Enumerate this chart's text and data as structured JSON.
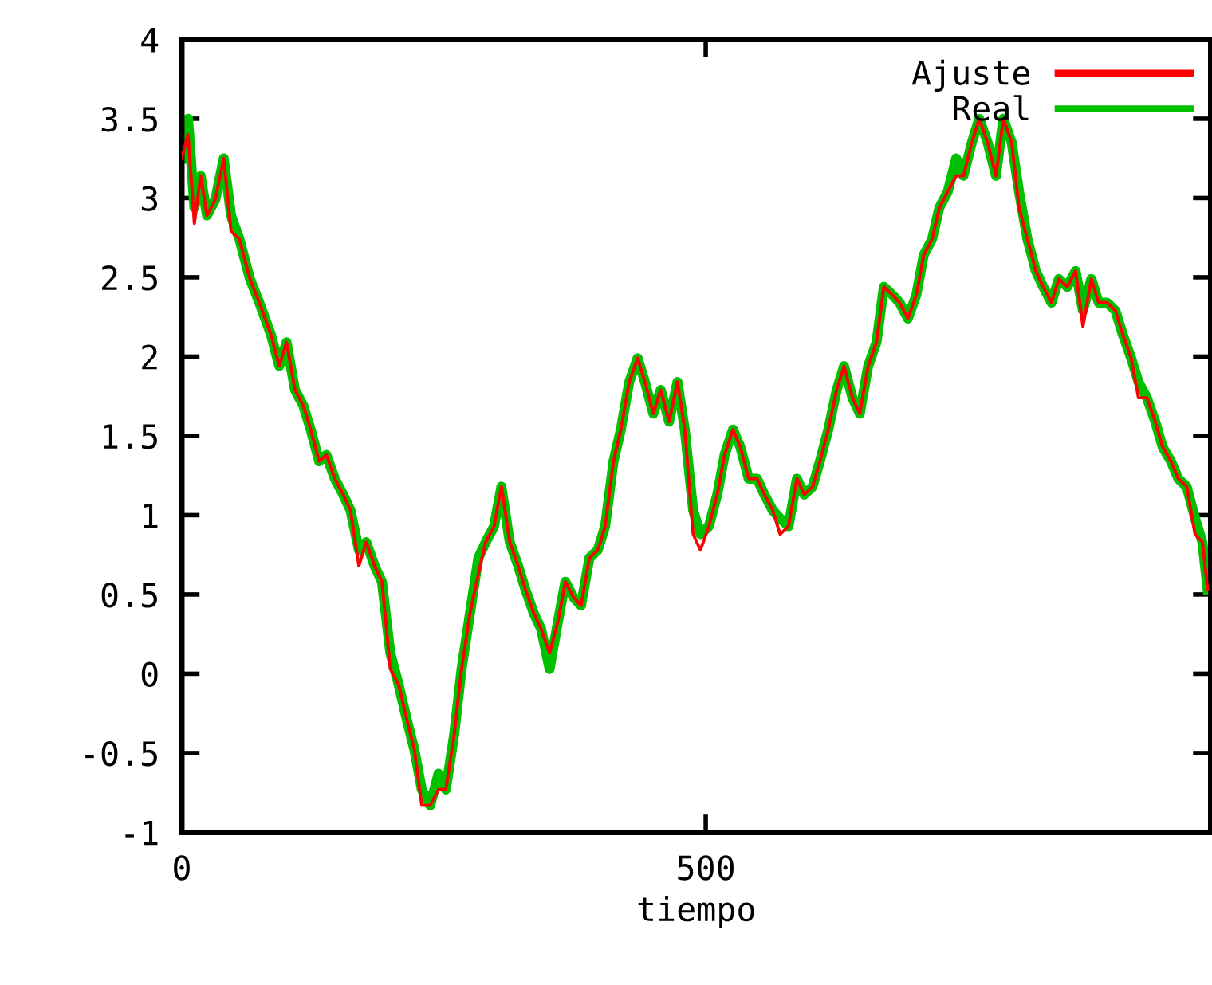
{
  "chart_data": {
    "type": "line",
    "xlabel": "tiempo",
    "xlim": [
      0,
      982
    ],
    "xticks": [
      0,
      500
    ],
    "ylim": [
      -1,
      4
    ],
    "yticks": [
      -1,
      -0.5,
      0,
      0.5,
      1,
      1.5,
      2,
      2.5,
      3,
      3.5,
      4
    ],
    "grid": false,
    "legend": "top right",
    "marker": "none",
    "line_style": "solid",
    "x": [
      0,
      6,
      12,
      18,
      24,
      32,
      40,
      47,
      55,
      65,
      74,
      85,
      93,
      100,
      108,
      116,
      123,
      131,
      138,
      146,
      154,
      161,
      169,
      176,
      184,
      191,
      199,
      207,
      214,
      222,
      229,
      237,
      245,
      252,
      260,
      267,
      275,
      283,
      290,
      298,
      305,
      313,
      321,
      328,
      336,
      343,
      351,
      359,
      366,
      374,
      381,
      389,
      397,
      404,
      412,
      419,
      427,
      435,
      442,
      450,
      457,
      465,
      473,
      480,
      488,
      495,
      503,
      511,
      518,
      526,
      533,
      541,
      549,
      556,
      564,
      571,
      579,
      587,
      594,
      602,
      609,
      617,
      625,
      632,
      640,
      647,
      655,
      663,
      670,
      678,
      685,
      693,
      701,
      708,
      716,
      723,
      731,
      739,
      746,
      754,
      761,
      769,
      777,
      784,
      792,
      799,
      807,
      815,
      822,
      830,
      837,
      845,
      853,
      860,
      868,
      875,
      883,
      891,
      898,
      906,
      913,
      921,
      929,
      936,
      944,
      951,
      959,
      967,
      974,
      979
    ],
    "series": [
      {
        "name": "Ajuste",
        "color": "#ff0000",
        "values": [
          3.25,
          3.4,
          2.84,
          3.14,
          2.89,
          2.99,
          3.25,
          2.79,
          2.74,
          2.49,
          2.34,
          2.14,
          1.94,
          2.09,
          1.79,
          1.69,
          1.54,
          1.34,
          1.38,
          1.23,
          1.13,
          1.03,
          0.68,
          0.83,
          0.68,
          0.58,
          0.03,
          -0.07,
          -0.27,
          -0.48,
          -0.83,
          -0.83,
          -0.73,
          -0.73,
          -0.38,
          0.03,
          0.38,
          0.63,
          0.83,
          0.93,
          1.18,
          0.83,
          0.68,
          0.53,
          0.38,
          0.28,
          0.13,
          0.33,
          0.58,
          0.48,
          0.43,
          0.73,
          0.78,
          0.93,
          1.34,
          1.54,
          1.84,
          1.99,
          1.84,
          1.64,
          1.79,
          1.59,
          1.84,
          1.54,
          0.88,
          0.78,
          0.93,
          1.13,
          1.38,
          1.54,
          1.43,
          1.23,
          1.23,
          1.13,
          1.03,
          0.88,
          0.93,
          1.23,
          1.13,
          1.18,
          1.34,
          1.54,
          1.79,
          1.94,
          1.74,
          1.64,
          1.94,
          2.09,
          2.44,
          2.39,
          2.34,
          2.24,
          2.39,
          2.64,
          2.74,
          2.94,
          3.04,
          3.14,
          3.14,
          3.35,
          3.5,
          3.35,
          3.14,
          3.5,
          3.35,
          2.94,
          2.74,
          2.54,
          2.44,
          2.34,
          2.49,
          2.44,
          2.54,
          2.19,
          2.49,
          2.34,
          2.34,
          2.29,
          2.14,
          1.99,
          1.74,
          1.74,
          1.59,
          1.43,
          1.34,
          1.23,
          1.18,
          0.88,
          0.83,
          0.53
        ]
      },
      {
        "name": "Real",
        "color": "#00c000",
        "values": [
          3.25,
          3.5,
          2.94,
          3.14,
          2.89,
          2.99,
          3.25,
          2.89,
          2.74,
          2.49,
          2.34,
          2.14,
          1.94,
          2.09,
          1.79,
          1.69,
          1.54,
          1.34,
          1.38,
          1.23,
          1.13,
          1.03,
          0.78,
          0.83,
          0.68,
          0.58,
          0.13,
          -0.07,
          -0.27,
          -0.48,
          -0.73,
          -0.83,
          -0.63,
          -0.73,
          -0.38,
          0.03,
          0.38,
          0.73,
          0.83,
          0.93,
          1.18,
          0.83,
          0.68,
          0.53,
          0.38,
          0.28,
          0.03,
          0.33,
          0.58,
          0.48,
          0.43,
          0.73,
          0.78,
          0.93,
          1.34,
          1.54,
          1.84,
          1.99,
          1.84,
          1.64,
          1.79,
          1.59,
          1.84,
          1.54,
          1.03,
          0.88,
          0.93,
          1.13,
          1.38,
          1.54,
          1.43,
          1.23,
          1.23,
          1.13,
          1.03,
          0.98,
          0.93,
          1.23,
          1.13,
          1.18,
          1.34,
          1.54,
          1.79,
          1.94,
          1.74,
          1.64,
          1.94,
          2.09,
          2.44,
          2.39,
          2.34,
          2.24,
          2.39,
          2.64,
          2.74,
          2.94,
          3.04,
          3.25,
          3.14,
          3.35,
          3.5,
          3.35,
          3.14,
          3.5,
          3.35,
          3.04,
          2.74,
          2.54,
          2.44,
          2.34,
          2.49,
          2.44,
          2.54,
          2.29,
          2.49,
          2.34,
          2.34,
          2.29,
          2.14,
          1.99,
          1.84,
          1.74,
          1.59,
          1.43,
          1.34,
          1.23,
          1.18,
          0.98,
          0.83,
          0.53
        ]
      }
    ]
  }
}
